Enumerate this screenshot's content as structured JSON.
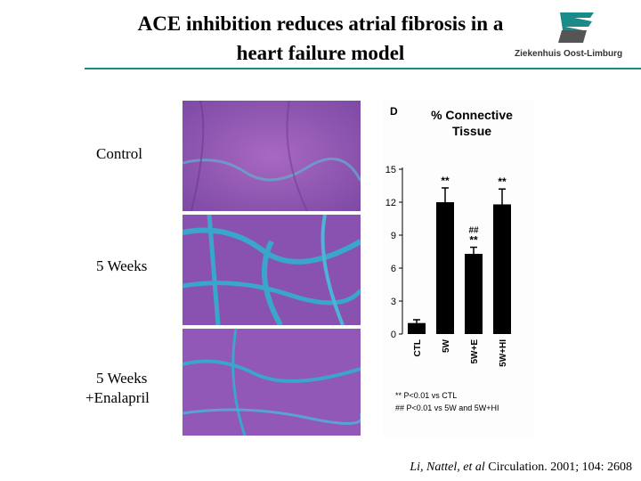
{
  "slide": {
    "title_line1": "ACE inhibition reduces atrial fibrosis in a",
    "title_line2": "heart failure model",
    "logo_text": "Ziekenhuis Oost-Limburg",
    "citation_authors": "Li, Nattel, et al",
    "citation_rest": " Circulation. 2001; 104: 2608",
    "row_labels": [
      "Control",
      "5 Weeks",
      "5 Weeks",
      "+Enalapril"
    ]
  },
  "colors": {
    "accent": "#1a8a8a",
    "tissue_stain": "#9b5bb5",
    "fibrosis_stain": "#3aa6c9"
  },
  "chart_data": {
    "type": "bar",
    "panel_letter": "D",
    "title_line1": "% Connective",
    "title_line2": "Tissue",
    "categories": [
      "CTL",
      "5W",
      "5W+E",
      "5W+HI"
    ],
    "values": [
      1.0,
      12.0,
      7.3,
      11.8
    ],
    "errors": [
      0.3,
      1.3,
      0.6,
      1.4
    ],
    "annotations": [
      "",
      "**",
      "**",
      "**"
    ],
    "annotations_extra": [
      "",
      "",
      "##",
      ""
    ],
    "yticks": [
      0,
      3,
      6,
      9,
      12,
      15
    ],
    "ylim": [
      0,
      15
    ],
    "footnote1": "** P<0.01 vs CTL",
    "footnote2": "## P<0.01 vs 5W and 5W+HI"
  }
}
